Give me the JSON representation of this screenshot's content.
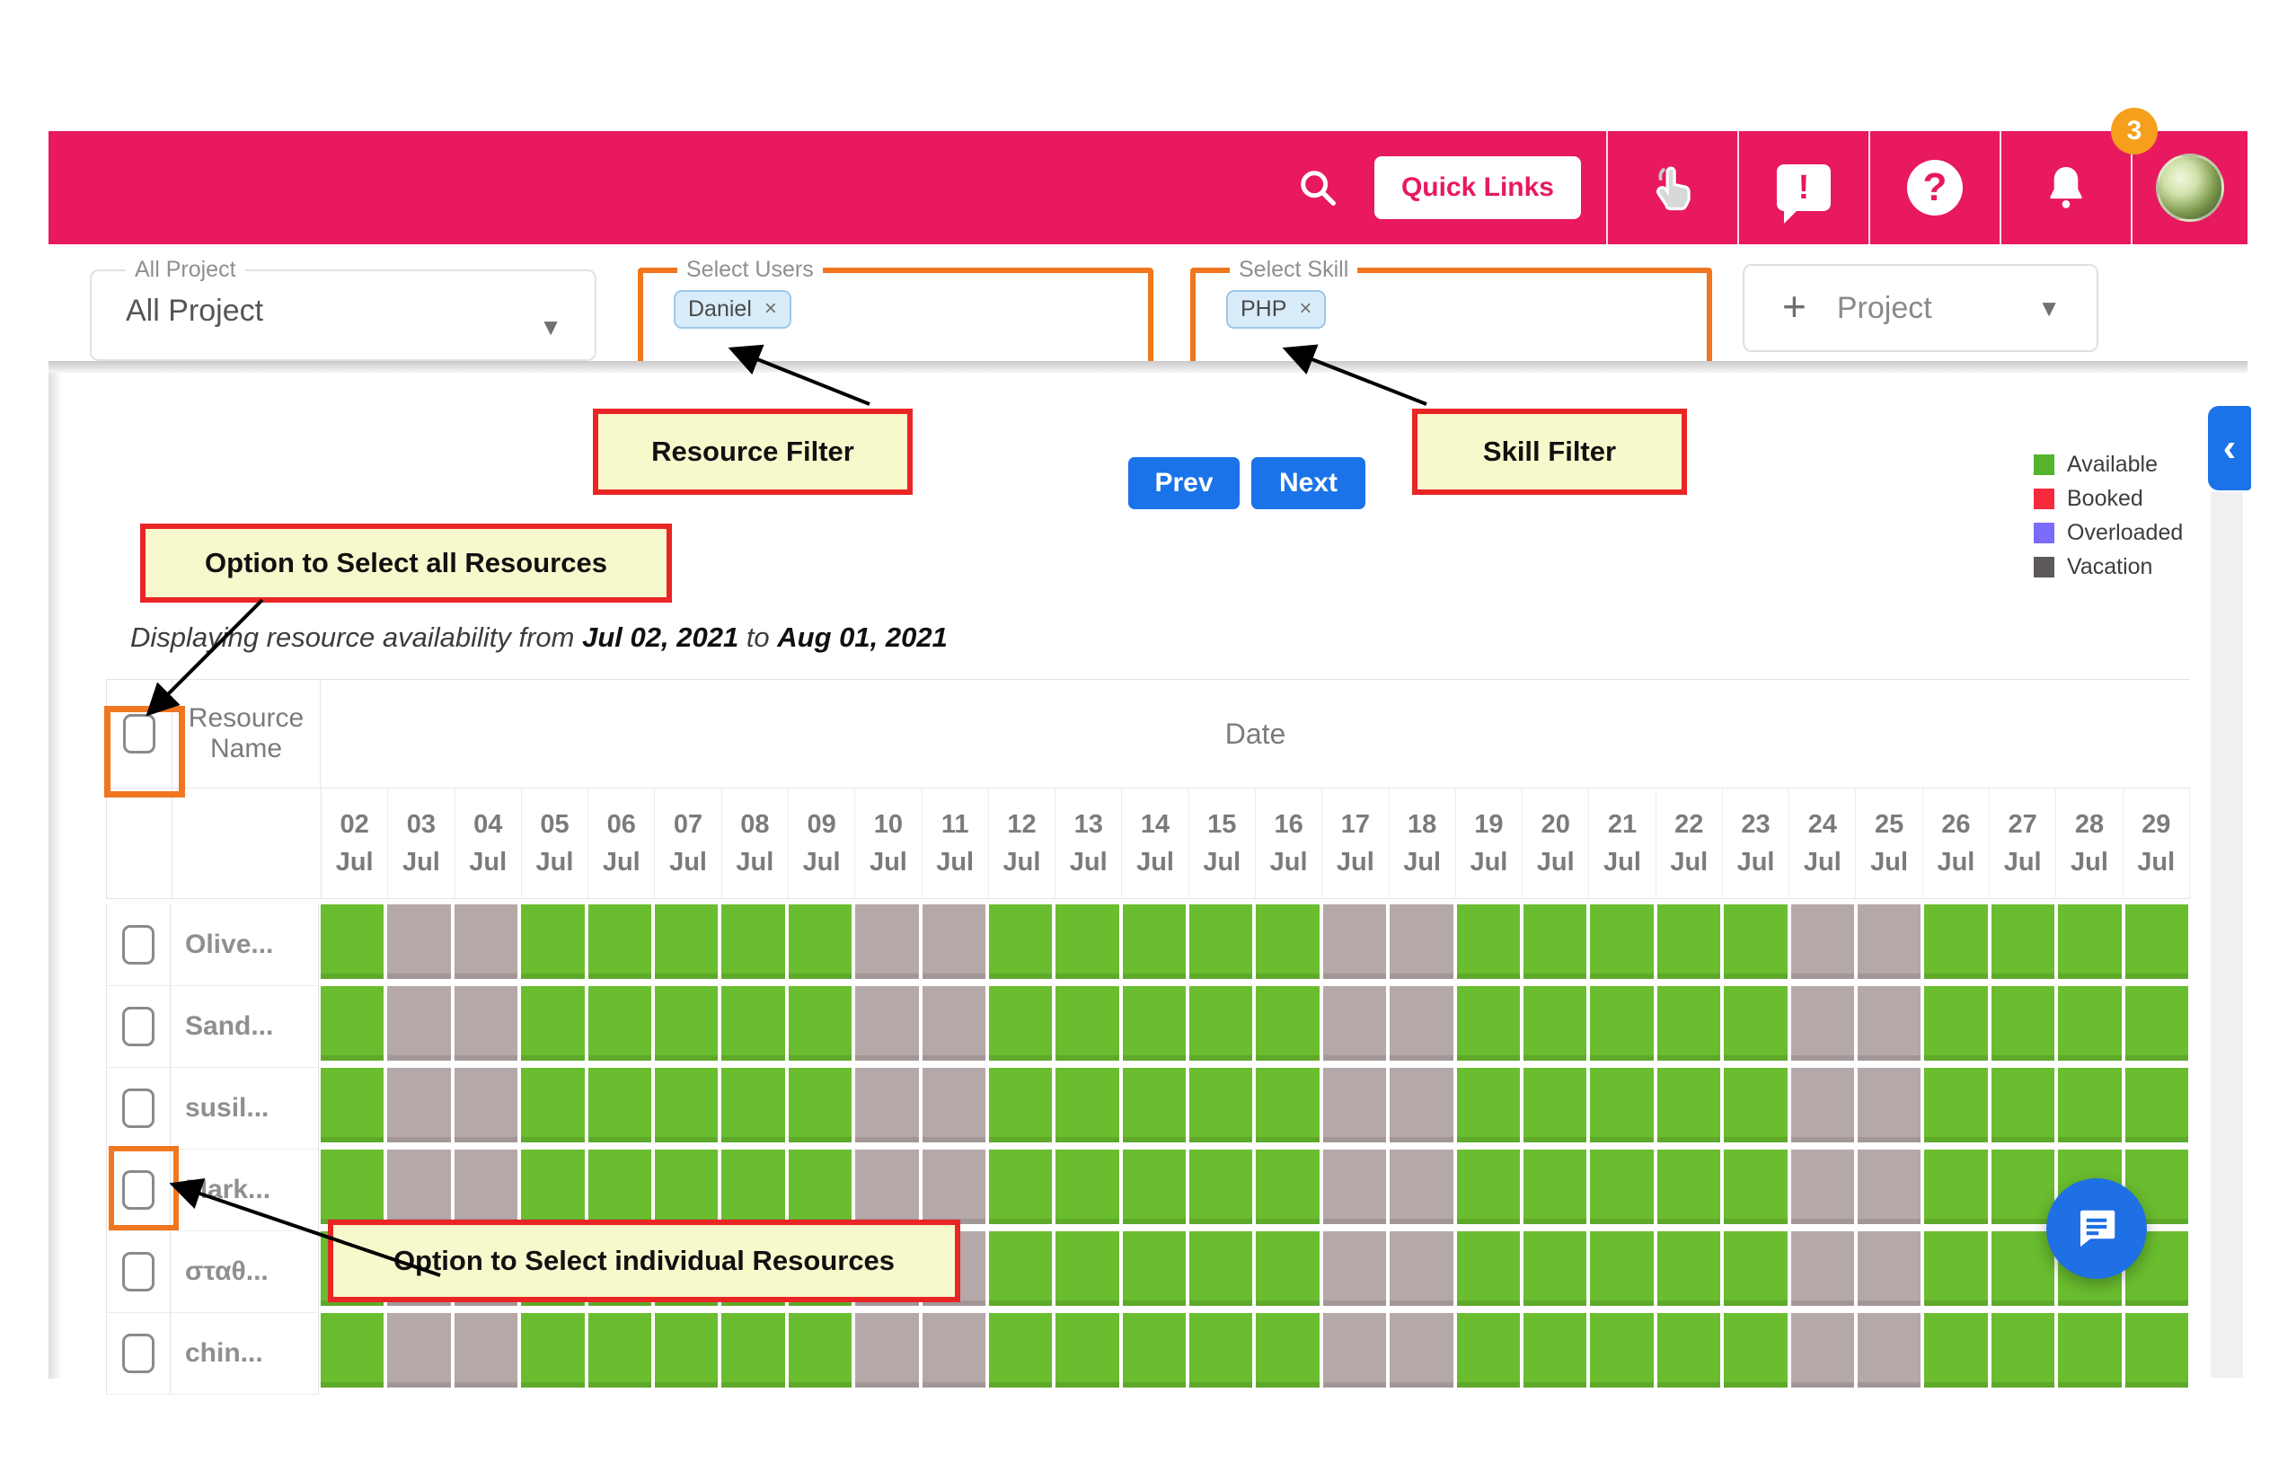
{
  "appbar": {
    "background": "#E8195E",
    "quick_links_label": "Quick Links",
    "notification_count": "3",
    "icons": [
      "search-icon",
      "pointer-hand-icon",
      "feedback-icon",
      "help-icon",
      "bell-icon",
      "avatar"
    ]
  },
  "filters": {
    "project": {
      "label": "All Project",
      "value": "All Project"
    },
    "users": {
      "label": "Select Users",
      "chip": "Daniel",
      "chip_remove": "×"
    },
    "skill": {
      "label": "Select Skill",
      "chip": "PHP",
      "chip_remove": "×"
    },
    "add_project": {
      "plus": "+",
      "label": "Project"
    }
  },
  "annotations": {
    "resource_filter": "Resource Filter",
    "skill_filter": "Skill Filter",
    "select_all": "Option to Select all Resources",
    "select_individual": "Option to Select individual Resources"
  },
  "toolbar": {
    "prev": "Prev",
    "next": "Next"
  },
  "legend": [
    {
      "label": "Available",
      "color": "#55B42B"
    },
    {
      "label": "Booked",
      "color": "#F7293D"
    },
    {
      "label": "Overloaded",
      "color": "#7A6BFA"
    },
    {
      "label": "Vacation",
      "color": "#5C585C"
    }
  ],
  "summary": {
    "prefix": "Displaying resource availability from",
    "from_date": "Jul 02, 2021",
    "connector": "to",
    "to_date": "Aug 01, 2021"
  },
  "table": {
    "resource_header": "Resource Name",
    "date_header": "Date",
    "month": "Jul",
    "days": [
      "02",
      "03",
      "04",
      "05",
      "06",
      "07",
      "08",
      "09",
      "10",
      "11",
      "12",
      "13",
      "14",
      "15",
      "16",
      "17",
      "18",
      "19",
      "20",
      "21",
      "22",
      "23",
      "24",
      "25",
      "26",
      "27",
      "28",
      "29"
    ],
    "weekend_days": [
      "03",
      "04",
      "10",
      "11",
      "17",
      "18",
      "24",
      "25"
    ],
    "resources": [
      "Olive...",
      "Sand...",
      "susil...",
      "Mark...",
      "σταθ...",
      "chin..."
    ],
    "cell_colors": {
      "available": "#6ABD2F",
      "vacation": "#B5A8A8"
    }
  }
}
